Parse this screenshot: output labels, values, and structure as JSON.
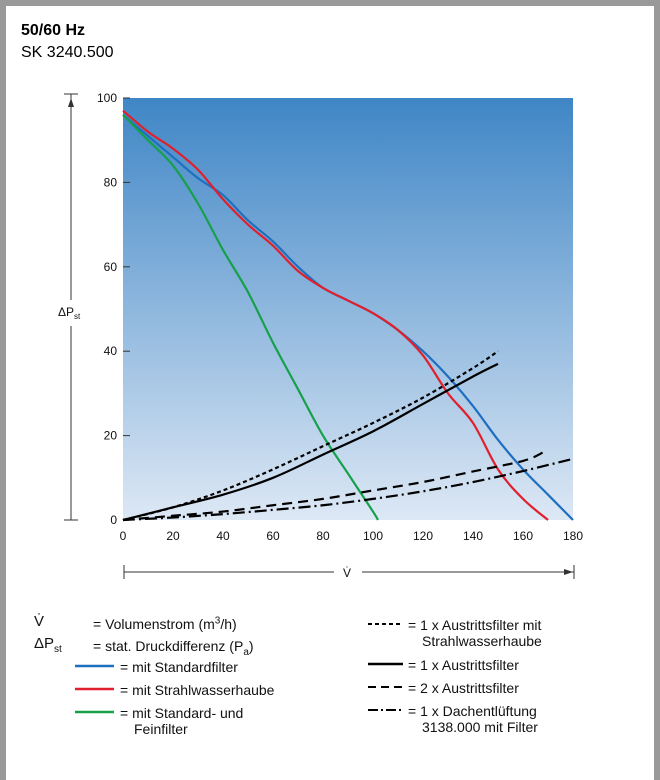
{
  "header": {
    "title": "50/60 Hz",
    "subtitle": "SK 3240.500"
  },
  "chart_data": {
    "type": "line",
    "xlabel": "V̇",
    "ylabel": "ΔPst",
    "xlim": [
      0,
      180
    ],
    "ylim": [
      0,
      100
    ],
    "x_ticks": [
      "0",
      "20",
      "40",
      "60",
      "80",
      "100",
      "120",
      "140",
      "160",
      "180"
    ],
    "y_ticks": [
      "0",
      "20",
      "40",
      "60",
      "80",
      "100"
    ],
    "background": {
      "gradient_top": "#3f86c6",
      "gradient_bottom": "#dde8f5"
    },
    "series": [
      {
        "name": "mit Standardfilter",
        "color": "#1f6fc0",
        "dash": "solid",
        "x": [
          0,
          10,
          20,
          30,
          40,
          50,
          60,
          70,
          80,
          90,
          100,
          110,
          120,
          130,
          140,
          150,
          160,
          170,
          180
        ],
        "y": [
          96,
          91,
          86,
          81,
          77,
          71,
          66,
          60,
          55,
          52,
          49,
          45,
          40,
          34,
          27,
          19,
          12,
          6,
          0
        ]
      },
      {
        "name": "mit Strahlwasserhaube",
        "color": "#e0202c",
        "dash": "solid",
        "x": [
          0,
          10,
          20,
          30,
          40,
          50,
          60,
          70,
          80,
          90,
          100,
          110,
          120,
          130,
          140,
          150,
          160,
          170
        ],
        "y": [
          97,
          92,
          88,
          83,
          76,
          70,
          65,
          59,
          55,
          52,
          49,
          45,
          39,
          30,
          23,
          12,
          5,
          0
        ]
      },
      {
        "name": "mit Standard- und Feinfilter",
        "color": "#16a04a",
        "dash": "solid",
        "x": [
          0,
          10,
          20,
          30,
          40,
          50,
          60,
          70,
          80,
          90,
          100,
          102
        ],
        "y": [
          96,
          90,
          84,
          75,
          64,
          54,
          42,
          31,
          20,
          11,
          2,
          0
        ]
      },
      {
        "name": "1 x Austrittsfilter mit Strahlwasserhaube",
        "color": "#000",
        "dash": "4,3",
        "x": [
          0,
          20,
          40,
          60,
          80,
          100,
          120,
          140,
          150
        ],
        "y": [
          0,
          3,
          7,
          12,
          17.5,
          23,
          29,
          36,
          40
        ]
      },
      {
        "name": "1 x Austrittsfilter",
        "color": "#000",
        "dash": "solid",
        "x": [
          0,
          20,
          40,
          60,
          80,
          100,
          120,
          140,
          150
        ],
        "y": [
          0,
          3,
          6,
          10,
          15.5,
          21,
          27.5,
          34,
          37
        ]
      },
      {
        "name": "2 x Austrittsfilter",
        "color": "#000",
        "dash": "10,6",
        "x": [
          0,
          20,
          40,
          60,
          80,
          100,
          120,
          140,
          160,
          168
        ],
        "y": [
          0,
          1,
          2,
          3.5,
          5,
          7,
          9,
          11.5,
          14,
          16
        ]
      },
      {
        "name": "1 x Dachentlüftung 3138.000 mit Filter",
        "color": "#000",
        "dash": "12,4,2,4",
        "x": [
          0,
          20,
          40,
          60,
          80,
          100,
          120,
          140,
          160,
          180
        ],
        "y": [
          0,
          0.6,
          1.4,
          2.4,
          3.5,
          5,
          6.8,
          9,
          11.6,
          14.5
        ]
      }
    ]
  },
  "legend": {
    "vdot_sym": "V̇",
    "vdot_desc": "= Volumenstrom (m",
    "vdot_sup": "3",
    "vdot_end": "/h)",
    "dp_sym": "ΔP",
    "dp_sub": "st",
    "dp_desc": "= stat. Druckdifferenz (P",
    "dp_sub2": "a",
    "dp_end": ")",
    "std": "= mit Standardfilter",
    "strahl": "= mit Strahlwasserhaube",
    "fein_1": "= mit Standard- und",
    "fein_2": "Feinfilter",
    "af_strahl_1": "= 1 x Austrittsfilter mit",
    "af_strahl_2": "Strahlwasserhaube",
    "af_1": "= 1 x Austrittsfilter",
    "af_2": "= 2 x Austrittsfilter",
    "dach_1": "= 1 x Dachentlüftung",
    "dach_2": "3138.000 mit Filter"
  }
}
